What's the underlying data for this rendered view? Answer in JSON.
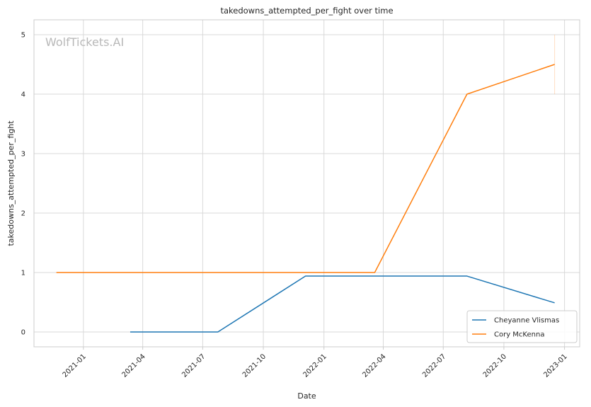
{
  "chart_data": {
    "type": "line",
    "title": "takedowns_attempted_per_fight over time",
    "xlabel": "Date",
    "ylabel": "takedowns_attempted_per_fight",
    "watermark": "WolfTickets.AI",
    "x_ticks": [
      "2021-01",
      "2021-04",
      "2021-07",
      "2021-10",
      "2022-01",
      "2022-04",
      "2022-07",
      "2022-10",
      "2023-01"
    ],
    "y_ticks": [
      "0",
      "1",
      "2",
      "3",
      "4",
      "5"
    ],
    "xlim": [
      "2020-10-18",
      "2023-01-24"
    ],
    "ylim": [
      -0.25,
      5.25
    ],
    "grid": true,
    "legend_position": "lower-right",
    "series": [
      {
        "name": "Cheyanne Vlismas",
        "color": "#1f77b4",
        "points": [
          {
            "date": "2021-03-13",
            "value": 0.0
          },
          {
            "date": "2021-07-24",
            "value": 0.0
          },
          {
            "date": "2021-12-04",
            "value": 0.94
          },
          {
            "date": "2022-08-06",
            "value": 0.94
          },
          {
            "date": "2022-12-17",
            "value": 0.49
          }
        ]
      },
      {
        "name": "Cory McKenna",
        "color": "#ff7f0e",
        "points": [
          {
            "date": "2020-11-21",
            "value": 1.0
          },
          {
            "date": "2022-03-19",
            "value": 1.0
          },
          {
            "date": "2022-08-06",
            "value": 4.0
          },
          {
            "date": "2022-12-17",
            "value": 4.5
          }
        ],
        "band": {
          "date": "2022-12-17",
          "low": 4.0,
          "high": 5.0
        }
      }
    ]
  }
}
